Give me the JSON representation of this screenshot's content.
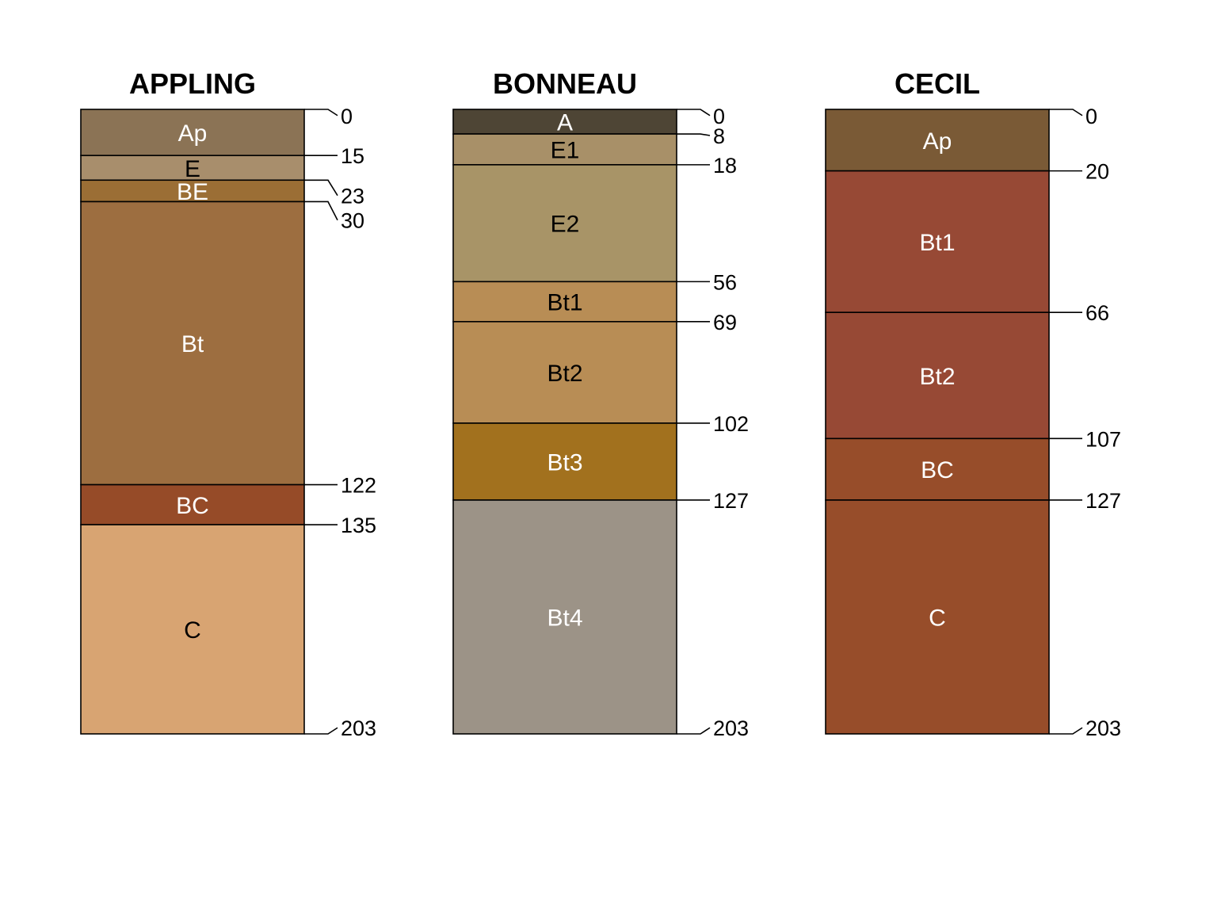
{
  "diagram": {
    "type": "soil-profile-sketch",
    "max_depth": 203,
    "profiles": [
      {
        "name": "APPLING",
        "horizons": [
          {
            "label": "Ap",
            "top": 0,
            "bottom": 15,
            "color": "#8B7355",
            "text_color": "#ffffff"
          },
          {
            "label": "E",
            "top": 15,
            "bottom": 23,
            "color": "#A88E6C",
            "text_color": "#000000"
          },
          {
            "label": "BE",
            "top": 23,
            "bottom": 30,
            "color": "#9B6E35",
            "text_color": "#ffffff"
          },
          {
            "label": "Bt",
            "top": 30,
            "bottom": 122,
            "color": "#9D6E40",
            "text_color": "#ffffff"
          },
          {
            "label": "BC",
            "top": 122,
            "bottom": 135,
            "color": "#964B28",
            "text_color": "#ffffff"
          },
          {
            "label": "C",
            "top": 135,
            "bottom": 203,
            "color": "#D8A472",
            "text_color": "#000000"
          }
        ],
        "depth_labels": [
          {
            "text": "0",
            "depth": 0,
            "label_depth": 2
          },
          {
            "text": "15",
            "depth": 15,
            "label_depth": 15
          },
          {
            "text": "23",
            "depth": 23,
            "label_depth": 28
          },
          {
            "text": "30",
            "depth": 30,
            "label_depth": 36
          },
          {
            "text": "122",
            "depth": 122,
            "label_depth": 122
          },
          {
            "text": "135",
            "depth": 135,
            "label_depth": 135
          },
          {
            "text": "203",
            "depth": 203,
            "label_depth": 201
          }
        ]
      },
      {
        "name": "BONNEAU",
        "horizons": [
          {
            "label": "A",
            "top": 0,
            "bottom": 8,
            "color": "#4E4535",
            "text_color": "#ffffff"
          },
          {
            "label": "E1",
            "top": 8,
            "bottom": 18,
            "color": "#A89068",
            "text_color": "#000000"
          },
          {
            "label": "E2",
            "top": 18,
            "bottom": 56,
            "color": "#A89467",
            "text_color": "#000000"
          },
          {
            "label": "Bt1",
            "top": 56,
            "bottom": 69,
            "color": "#B88D55",
            "text_color": "#000000"
          },
          {
            "label": "Bt2",
            "top": 69,
            "bottom": 102,
            "color": "#B88D55",
            "text_color": "#000000"
          },
          {
            "label": "Bt3",
            "top": 102,
            "bottom": 127,
            "color": "#A2711E",
            "text_color": "#ffffff"
          },
          {
            "label": "Bt4",
            "top": 127,
            "bottom": 203,
            "color": "#9C9387",
            "text_color": "#ffffff"
          }
        ],
        "depth_labels": [
          {
            "text": "0",
            "depth": 0,
            "label_depth": 2
          },
          {
            "text": "8",
            "depth": 8,
            "label_depth": 8.5
          },
          {
            "text": "18",
            "depth": 18,
            "label_depth": 18
          },
          {
            "text": "56",
            "depth": 56,
            "label_depth": 56
          },
          {
            "text": "69",
            "depth": 69,
            "label_depth": 69
          },
          {
            "text": "102",
            "depth": 102,
            "label_depth": 102
          },
          {
            "text": "127",
            "depth": 127,
            "label_depth": 127
          },
          {
            "text": "203",
            "depth": 203,
            "label_depth": 201
          }
        ]
      },
      {
        "name": "CECIL",
        "horizons": [
          {
            "label": "Ap",
            "top": 0,
            "bottom": 20,
            "color": "#7A5A36",
            "text_color": "#ffffff"
          },
          {
            "label": "Bt1",
            "top": 20,
            "bottom": 66,
            "color": "#974935",
            "text_color": "#ffffff"
          },
          {
            "label": "Bt2",
            "top": 66,
            "bottom": 107,
            "color": "#974935",
            "text_color": "#ffffff"
          },
          {
            "label": "BC",
            "top": 107,
            "bottom": 127,
            "color": "#974D2A",
            "text_color": "#ffffff"
          },
          {
            "label": "C",
            "top": 127,
            "bottom": 203,
            "color": "#974D2A",
            "text_color": "#ffffff"
          }
        ],
        "depth_labels": [
          {
            "text": "0",
            "depth": 0,
            "label_depth": 2
          },
          {
            "text": "20",
            "depth": 20,
            "label_depth": 20
          },
          {
            "text": "66",
            "depth": 66,
            "label_depth": 66
          },
          {
            "text": "107",
            "depth": 107,
            "label_depth": 107
          },
          {
            "text": "127",
            "depth": 127,
            "label_depth": 127
          },
          {
            "text": "203",
            "depth": 203,
            "label_depth": 201
          }
        ]
      }
    ]
  }
}
